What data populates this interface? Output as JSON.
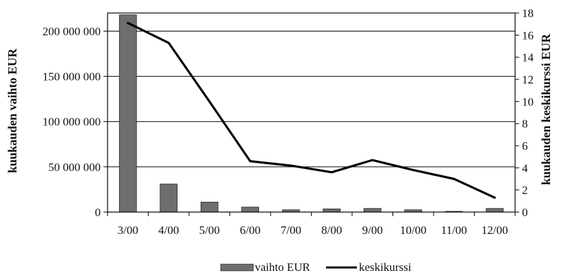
{
  "chart_data": {
    "type": "bar",
    "categories": [
      "3/00",
      "4/00",
      "5/00",
      "6/00",
      "7/00",
      "8/00",
      "9/00",
      "10/00",
      "11/00",
      "12/00"
    ],
    "series": [
      {
        "name": "vaihto EUR",
        "type": "bar",
        "axis": "left",
        "values": [
          218000000,
          31000000,
          11000000,
          5500000,
          2500000,
          3500000,
          4000000,
          2500000,
          800000,
          4000000
        ]
      },
      {
        "name": "keskikurssi",
        "type": "line",
        "axis": "right",
        "values": [
          17.1,
          15.3,
          10.0,
          4.6,
          4.2,
          3.6,
          4.7,
          3.8,
          3.0,
          1.3
        ]
      }
    ],
    "ylabel": "kuukauden vaihto EUR",
    "ylabel_right": "kuukauden keskikurssi EUR",
    "ylim": [
      0,
      220000000
    ],
    "ylim_right": [
      0,
      18
    ],
    "yticks": [
      "0",
      "50 000 000",
      "100 000 000",
      "150 000 000",
      "200 000 000"
    ],
    "yticks_right": [
      "0",
      "2",
      "4",
      "6",
      "8",
      "10",
      "12",
      "14",
      "16",
      "18"
    ],
    "grid": true,
    "legend_position": "bottom",
    "colors": {
      "bar": "#6e6e6e",
      "line": "#000000"
    }
  }
}
